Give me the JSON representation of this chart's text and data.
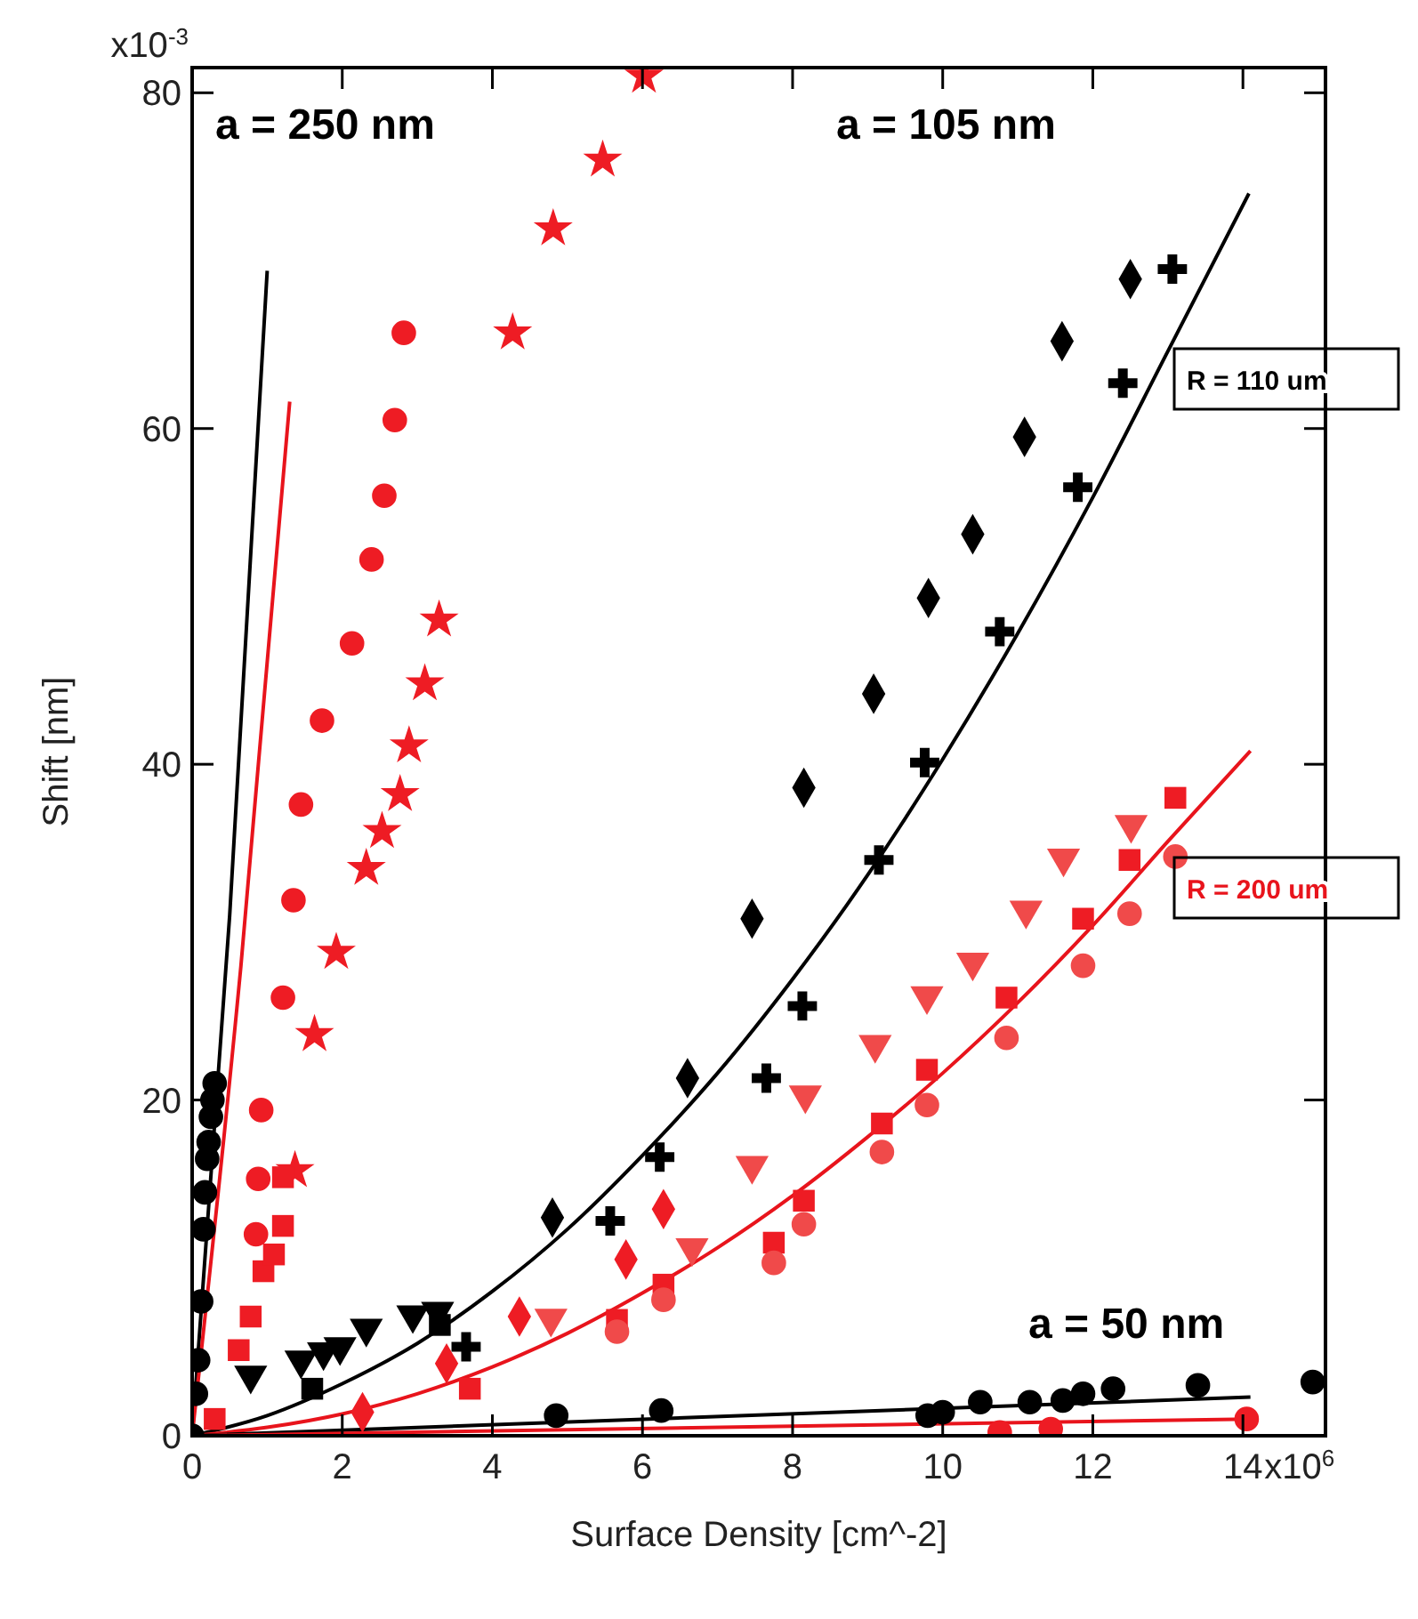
{
  "chart_data": {
    "type": "scatter",
    "xlabel": "Surface Density [cm^-2]",
    "ylabel": "Shift [nm]",
    "xlim": [
      0,
      15.1
    ],
    "ylim": [
      0,
      81.5
    ],
    "xticks": [
      0,
      2,
      4,
      6,
      8,
      10,
      12,
      14
    ],
    "yticks": [
      0,
      20,
      40,
      60,
      80
    ],
    "annotations": [
      "a = 250 nm",
      "a = 105 nm",
      "a = 50 nm",
      "R = 110 um",
      "R = 200 um",
      "x10$^{6}$",
      "x10$^{-3}$"
    ],
    "series": [
      {
        "marker": "circle",
        "color": "#000000",
        "x": [
          0.05,
          0.08,
          0.12,
          0.15,
          0.17,
          0.2,
          0.22,
          0.25,
          0.27,
          0.3
        ],
        "values": [
          2.5,
          4.5,
          8,
          12.3,
          14.5,
          16.5,
          17.5,
          19,
          20,
          21
        ]
      },
      {
        "marker": "triangle",
        "color": "#000000",
        "x": [
          0.78,
          1.45,
          1.75,
          1.97,
          2.32,
          2.94,
          3.27
        ],
        "values": [
          3.6,
          4.5,
          5,
          5.3,
          6.4,
          7.2,
          7.4
        ]
      },
      {
        "marker": "square",
        "color": "#000000",
        "x": [
          1.6,
          3.3
        ],
        "values": [
          2.8,
          6.6
        ]
      },
      {
        "marker": "diamond",
        "color": "#000000",
        "x": [
          4.8,
          6.6,
          7.46,
          8.15,
          9.08,
          9.81,
          10.4,
          11.09,
          11.59,
          12.5
        ],
        "values": [
          13,
          21.3,
          30.8,
          38.6,
          44.2,
          49.9,
          53.7,
          59.5,
          65.2,
          68.9
        ]
      },
      {
        "marker": "cross",
        "color": "#000000",
        "x": [
          3.65,
          5.57,
          6.23,
          7.65,
          8.13,
          9.15,
          9.76,
          10.76,
          11.8,
          12.4,
          13.06
        ],
        "values": [
          5.3,
          12.8,
          16.6,
          21.3,
          25.6,
          34.3,
          40.1,
          47.9,
          56.5,
          62.7,
          69.5
        ]
      },
      {
        "marker": "circle",
        "color": "#000000",
        "x": [
          0,
          4.85,
          6.25,
          9.8,
          10.0,
          10.5,
          11.16,
          11.6,
          11.87,
          12.27,
          13.4,
          14.93
        ],
        "values": [
          0,
          1.2,
          1.5,
          1.2,
          1.4,
          2.0,
          2.0,
          2.1,
          2.5,
          2.8,
          3.0,
          3.2
        ]
      },
      {
        "marker": "circle",
        "color": "#ee1c24",
        "x": [
          0.85,
          0.88,
          0.92,
          1.21,
          1.35,
          1.45,
          1.73,
          2.13,
          2.39,
          2.56,
          2.7,
          2.82
        ],
        "values": [
          12,
          15.3,
          19.4,
          26.1,
          31.9,
          37.6,
          42.6,
          47.2,
          52.2,
          56,
          60.5,
          65.7
        ]
      },
      {
        "marker": "star",
        "color": "#ee1c24",
        "x": [
          1.37,
          1.63,
          1.92,
          2.32,
          2.53,
          2.77,
          2.89,
          3.1,
          3.29,
          4.27,
          4.81,
          5.47,
          6.02
        ],
        "values": [
          15.8,
          23.9,
          28.8,
          33.8,
          36,
          38.2,
          41.1,
          44.8,
          48.6,
          65.7,
          71.9,
          76,
          81
        ]
      },
      {
        "marker": "square",
        "color": "#ee1c24",
        "x": [
          0.62,
          0.78,
          0.95,
          1.09,
          1.21,
          1.21
        ],
        "values": [
          5.1,
          7.1,
          9.8,
          10.8,
          12.5,
          15.4
        ]
      },
      {
        "marker": "square",
        "color": "#ee1c24",
        "x": [
          0.3,
          3.7,
          5.66,
          6.28,
          7.75,
          8.15,
          9.19,
          9.79,
          10.85,
          11.87,
          12.49,
          13.1
        ],
        "values": [
          1,
          2.8,
          6.9,
          9,
          11.5,
          14,
          18.6,
          21.8,
          26.1,
          30.8,
          34.3,
          38
        ]
      },
      {
        "marker": "circle",
        "color": "#f04a4a",
        "x": [
          5.66,
          6.28,
          7.75,
          8.15,
          9.19,
          9.79,
          10.85,
          11.87,
          12.49,
          13.1
        ],
        "values": [
          6.2,
          8.1,
          10.3,
          12.6,
          16.9,
          19.7,
          23.7,
          28,
          31.1,
          34.5
        ]
      },
      {
        "marker": "triangle",
        "color": "#f04a4a",
        "x": [
          4.78,
          6.66,
          7.46,
          8.17,
          9.1,
          9.79,
          10.4,
          11.11,
          11.61,
          12.51
        ],
        "values": [
          7,
          11.2,
          16.1,
          20.3,
          23.3,
          26.2,
          28.2,
          31.3,
          34.4,
          36.4
        ]
      },
      {
        "marker": "diamond",
        "color": "#ee1c24",
        "x": [
          2.27,
          3.39,
          4.36,
          5.78,
          6.28
        ],
        "values": [
          1.4,
          4.3,
          7.1,
          10.5,
          13.5
        ]
      },
      {
        "marker": "circle",
        "color": "#ee1c24",
        "x": [
          10.76,
          11.44,
          14.05
        ],
        "values": [
          0.2,
          0.4,
          1.0
        ]
      },
      {
        "type": "line",
        "color": "#000000",
        "x": [
          0,
          0.5,
          1.0
        ],
        "values": [
          0,
          31,
          69.4
        ]
      },
      {
        "type": "line",
        "color": "#e8141c",
        "x": [
          0,
          0.65,
          1.3
        ],
        "values": [
          0,
          28,
          61.6
        ]
      },
      {
        "type": "line",
        "color": "#000000",
        "x": [
          0,
          1,
          2,
          3,
          4,
          5,
          6,
          7,
          8,
          9,
          10,
          11,
          12,
          13,
          14.08
        ],
        "values": [
          0,
          1.2,
          3.1,
          5.5,
          8.6,
          12.3,
          16.7,
          21.6,
          27.2,
          33.4,
          40.3,
          47.8,
          55.9,
          64.6,
          74
        ]
      },
      {
        "type": "line",
        "color": "#e8141c",
        "x": [
          0,
          1,
          2,
          3,
          4,
          5,
          6,
          7,
          8,
          9,
          10,
          11,
          12,
          13,
          14.1
        ],
        "values": [
          0,
          0.5,
          1.3,
          2.5,
          4.1,
          6.1,
          8.5,
          11.2,
          14.3,
          17.8,
          21.6,
          25.8,
          30.4,
          35.4,
          40.8
        ]
      },
      {
        "type": "line",
        "color": "#000000",
        "x": [
          0,
          14.1
        ],
        "values": [
          0,
          2.3
        ]
      },
      {
        "type": "line",
        "color": "#e8141c",
        "x": [
          0,
          14.1
        ],
        "values": [
          0,
          1.0
        ]
      }
    ]
  }
}
